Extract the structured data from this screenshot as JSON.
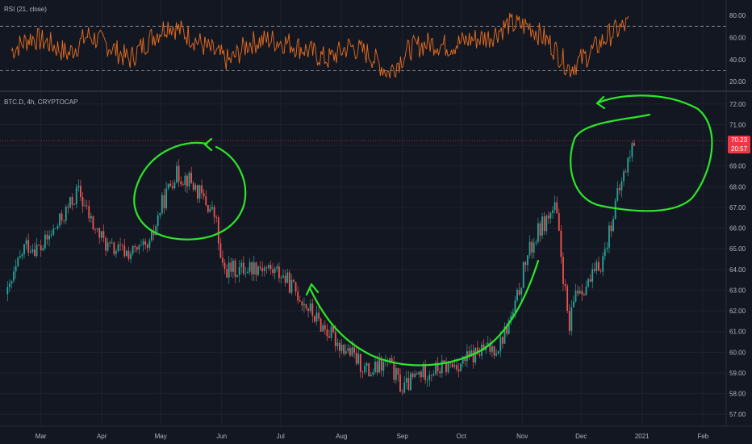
{
  "indicator": {
    "label": "RSI (21, close)",
    "levels": [
      70,
      30
    ],
    "yticks": [
      20,
      40,
      60,
      80
    ],
    "ylim": [
      15,
      88
    ],
    "color": "#e86d1f"
  },
  "symbol": {
    "label": "BTC.D, 4h, CRYPTOCAP"
  },
  "price_badges": {
    "price": "70.23",
    "countdown": "20:57",
    "color": "#f23645"
  },
  "colors": {
    "background": "#131722",
    "up": "#26a69a",
    "down": "#ef5350",
    "annotation": "#2de52a",
    "grid": "#1e2230",
    "axis_text": "#b2b5be"
  },
  "chart_data": [
    {
      "type": "line",
      "title": "RSI (21, close)",
      "ylim": [
        15,
        88
      ],
      "levels": [
        70,
        30
      ],
      "yticks": [
        "20.00",
        "40.00",
        "60.00",
        "80.00"
      ],
      "x": [
        "2020-02-15",
        "2020-02-25",
        "2020-03-05",
        "2020-03-15",
        "2020-03-25",
        "2020-04-05",
        "2020-04-15",
        "2020-04-25",
        "2020-05-05",
        "2020-05-15",
        "2020-05-25",
        "2020-06-05",
        "2020-06-15",
        "2020-06-25",
        "2020-07-05",
        "2020-07-15",
        "2020-07-25",
        "2020-08-05",
        "2020-08-15",
        "2020-08-25",
        "2020-09-05",
        "2020-09-15",
        "2020-09-25",
        "2020-10-05",
        "2020-10-15",
        "2020-10-25",
        "2020-11-05",
        "2020-11-15",
        "2020-11-25",
        "2020-12-05",
        "2020-12-15",
        "2020-12-25"
      ],
      "values": [
        48,
        60,
        55,
        45,
        62,
        52,
        40,
        58,
        72,
        62,
        50,
        38,
        55,
        58,
        55,
        48,
        40,
        52,
        45,
        28,
        50,
        55,
        52,
        58,
        60,
        72,
        70,
        55,
        32,
        45,
        62,
        72
      ]
    },
    {
      "type": "candlestick",
      "title": "BTC.D, 4h, CRYPTOCAP",
      "ylim": [
        56.5,
        72.5
      ],
      "yticks": [
        "57.00",
        "58.00",
        "59.00",
        "60.00",
        "61.00",
        "62.00",
        "63.00",
        "64.00",
        "65.00",
        "66.00",
        "67.00",
        "68.00",
        "69.00",
        "70.00",
        "71.00",
        "72.00"
      ],
      "xticks": [
        "Mar",
        "Apr",
        "May",
        "Jun",
        "Jul",
        "Aug",
        "Sep",
        "Oct",
        "Nov",
        "Dec",
        "2021",
        "Feb"
      ],
      "x": [
        "2020-02-13",
        "2020-02-22",
        "2020-03-01",
        "2020-03-10",
        "2020-03-20",
        "2020-03-28",
        "2020-04-05",
        "2020-04-15",
        "2020-04-25",
        "2020-05-01",
        "2020-05-08",
        "2020-05-15",
        "2020-05-22",
        "2020-05-29",
        "2020-06-01",
        "2020-06-10",
        "2020-06-20",
        "2020-07-01",
        "2020-07-10",
        "2020-07-20",
        "2020-07-30",
        "2020-08-05",
        "2020-08-15",
        "2020-08-25",
        "2020-09-01",
        "2020-09-10",
        "2020-09-20",
        "2020-10-01",
        "2020-10-10",
        "2020-10-20",
        "2020-10-28",
        "2020-11-03",
        "2020-11-10",
        "2020-11-18",
        "2020-11-25",
        "2020-11-28",
        "2020-12-05",
        "2020-12-12",
        "2020-12-18",
        "2020-12-24",
        "2020-12-28"
      ],
      "close": [
        62.8,
        65.2,
        65.0,
        66.2,
        67.8,
        66.0,
        65.0,
        64.8,
        65.0,
        67.0,
        68.6,
        68.4,
        67.5,
        66.5,
        64.0,
        64.0,
        64.2,
        63.8,
        62.8,
        61.5,
        60.5,
        60.0,
        59.0,
        59.5,
        58.2,
        59.0,
        59.2,
        59.5,
        60.0,
        60.3,
        62.0,
        64.5,
        66.0,
        67.0,
        61.0,
        63.0,
        63.3,
        64.5,
        67.0,
        69.0,
        70.2
      ],
      "last_price": 70.23
    }
  ]
}
